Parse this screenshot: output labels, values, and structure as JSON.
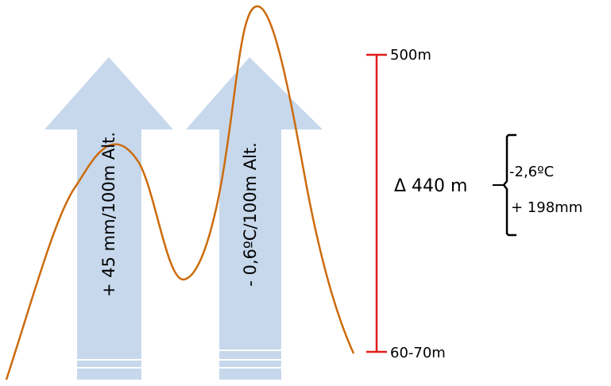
{
  "arrows": {
    "left_label": "+ 45 mm/100m Alt.",
    "right_label": "- 0,6ºC/100m Alt."
  },
  "scale": {
    "top_label": "500m",
    "bottom_label": "60-70m",
    "delta_label": "Δ 440 m"
  },
  "changes": {
    "temperature": "-2,6ºC",
    "precipitation": "+ 198mm"
  },
  "colors": {
    "arrow_fill": "#c7d8ec",
    "terrain_line": "#cc6b0c",
    "scale_line": "#e31b1b",
    "brace": "#000000"
  }
}
